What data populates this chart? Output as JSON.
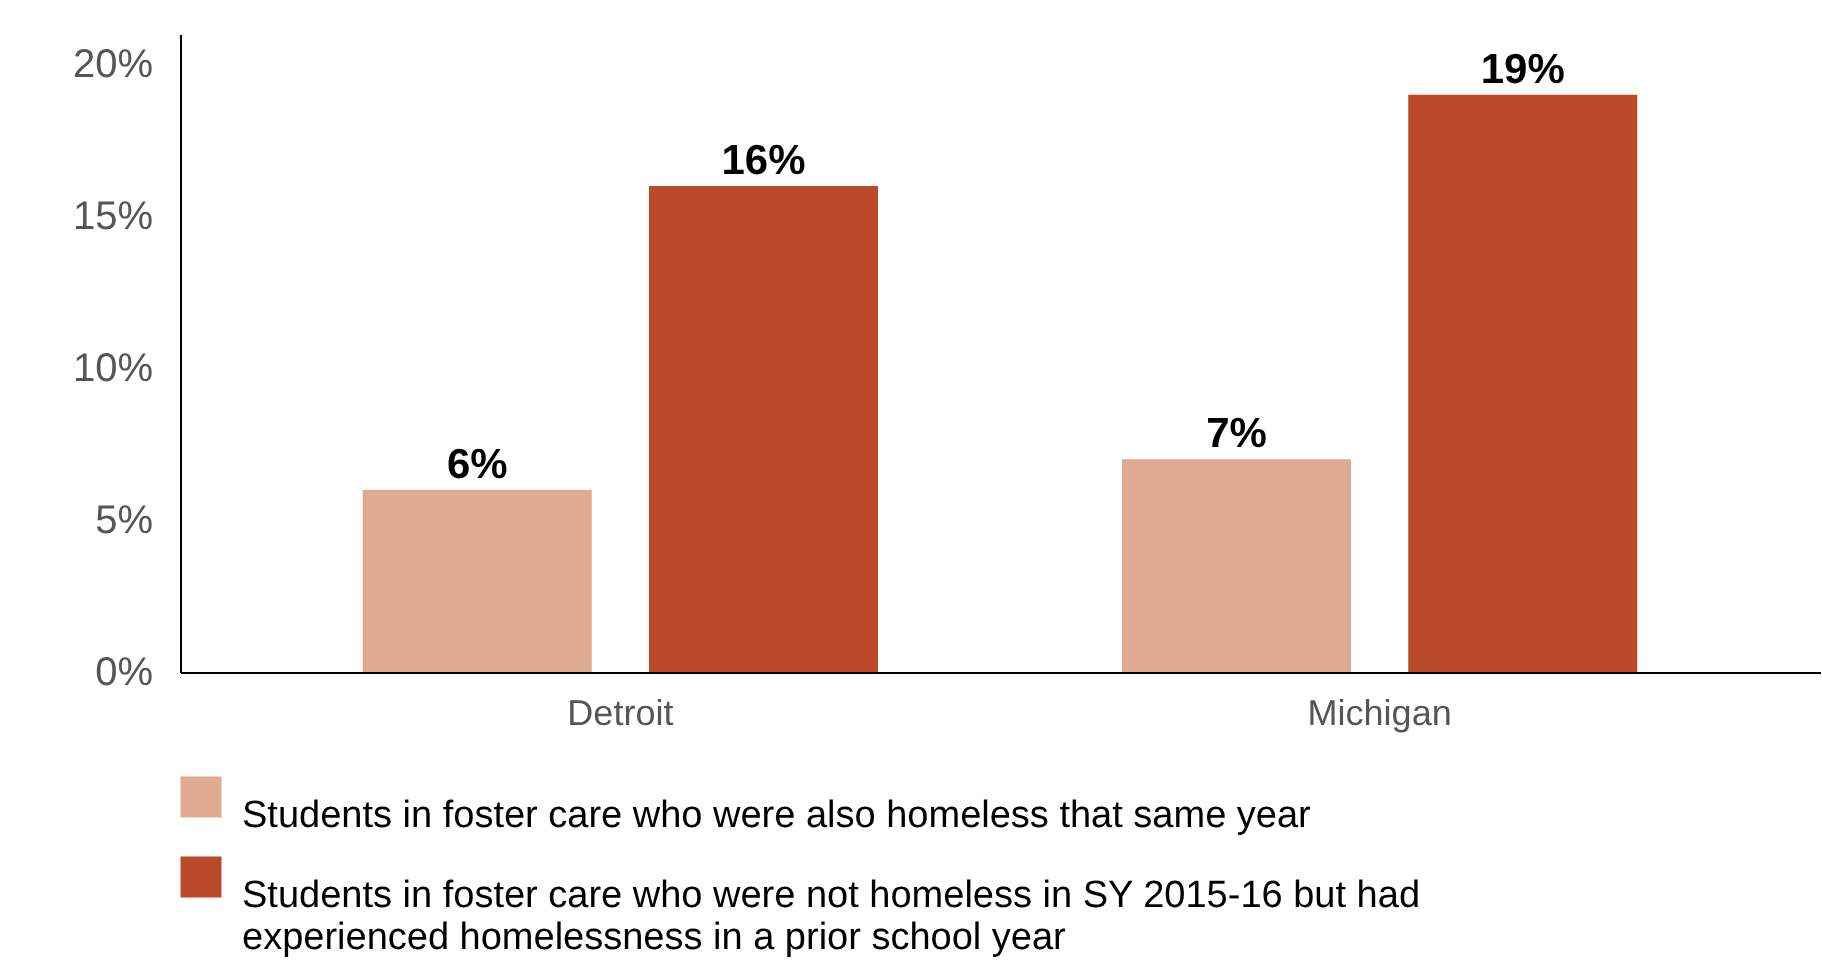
{
  "chart_data": {
    "type": "bar",
    "categories": [
      "Detroit",
      "Michigan"
    ],
    "series": [
      {
        "name": "Students in foster care who were also homeless that same year",
        "color": "#dfaa91",
        "values": [
          6,
          7
        ],
        "value_labels": [
          "6%",
          "7%"
        ]
      },
      {
        "name": "Students in foster care who were not homeless in SY 2015-16 but had experienced homelessness in a prior school year",
        "color": "#bb4a2b",
        "values": [
          16,
          19
        ],
        "value_labels": [
          "16%",
          "19%"
        ]
      }
    ],
    "ylim": [
      0,
      21
    ],
    "yticks": [
      {
        "value": 0,
        "label": "0%"
      },
      {
        "value": 5,
        "label": "5%"
      },
      {
        "value": 10,
        "label": "10%"
      },
      {
        "value": 15,
        "label": "15%"
      },
      {
        "value": 20,
        "label": "20%"
      }
    ],
    "grid": false,
    "legend": "bottom"
  }
}
